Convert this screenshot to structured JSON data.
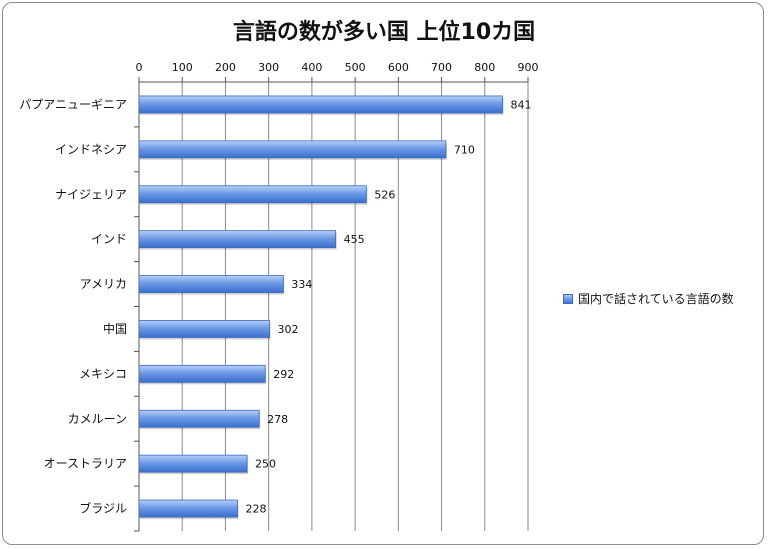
{
  "chart_data": {
    "type": "bar",
    "orientation": "horizontal",
    "title": "言語の数が多い国 上位10カ国",
    "xlabel": "",
    "ylabel": "",
    "xlim": [
      0,
      900
    ],
    "ticks": [
      0,
      100,
      200,
      300,
      400,
      500,
      600,
      700,
      800,
      900
    ],
    "tick_labels": [
      "0",
      "100",
      "200",
      "300",
      "400",
      "500",
      "600",
      "700",
      "800",
      "900"
    ],
    "axis_position": "top",
    "grid": true,
    "legend_position": "right",
    "categories": [
      "パプアニューギニア",
      "インドネシア",
      "ナイジェリア",
      "インド",
      "アメリカ",
      "中国",
      "メキシコ",
      "カメルーン",
      "オーストラリア",
      "ブラジル"
    ],
    "series": [
      {
        "name": "国内で話されている言語の数",
        "values": [
          841,
          710,
          526,
          455,
          334,
          302,
          292,
          278,
          250,
          228
        ],
        "color": "#4f81d6"
      }
    ],
    "data_labels": [
      "841",
      "710",
      "526",
      "455",
      "334",
      "302",
      "292",
      "278",
      "250",
      "228"
    ]
  }
}
